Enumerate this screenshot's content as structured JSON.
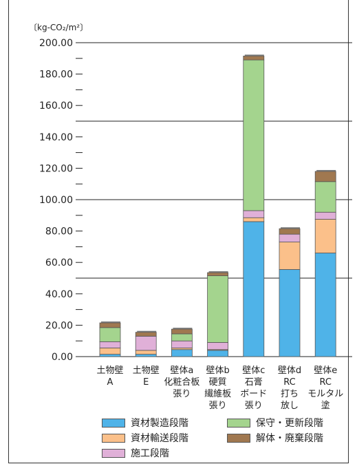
{
  "chart_data": {
    "type": "bar",
    "stacked": true,
    "unit_label": "〔kg-CO₂/m²〕",
    "ylim": [
      0,
      200
    ],
    "yticks": [
      "0.00",
      "20.00",
      "40.00",
      "60.00",
      "80.00",
      "100.00",
      "120.00",
      "140.00",
      "160.00",
      "180.00",
      "200.00"
    ],
    "gridlines": [
      50,
      100,
      150,
      200
    ],
    "categories": [
      [
        "土物壁",
        "A"
      ],
      [
        "土物壁",
        "E"
      ],
      [
        "壁体a",
        "化粧合板",
        "張り"
      ],
      [
        "壁体b",
        "硬質",
        "繊維板",
        "張り"
      ],
      [
        "壁体c",
        "石膏",
        "ボード",
        "張り"
      ],
      [
        "壁体d",
        "RC",
        "打ち",
        "放し"
      ],
      [
        "壁体e",
        "RC",
        "モルタル",
        "塗"
      ]
    ],
    "series": [
      {
        "name": "資材製造段階",
        "color": "#4fb3e8",
        "values": [
          1.5,
          1.5,
          4.5,
          4,
          86,
          55.5,
          66
        ]
      },
      {
        "name": "資材輸送段階",
        "color": "#fbc08a",
        "values": [
          4,
          2.5,
          1,
          0.5,
          2.5,
          17.5,
          21.5
        ]
      },
      {
        "name": "施工段階",
        "color": "#e0b0d8",
        "values": [
          4,
          9,
          4.5,
          4.5,
          4.5,
          5,
          4.5
        ]
      },
      {
        "name": "保守・更新段階",
        "color": "#a4d48e",
        "values": [
          9,
          0,
          4.5,
          42.5,
          96,
          0,
          19.5
        ]
      },
      {
        "name": "解体・廃棄段階",
        "color": "#a07850",
        "values": [
          3,
          2.5,
          3,
          2,
          2.5,
          3.5,
          6.5
        ]
      }
    ],
    "legend_position": "bottom"
  }
}
